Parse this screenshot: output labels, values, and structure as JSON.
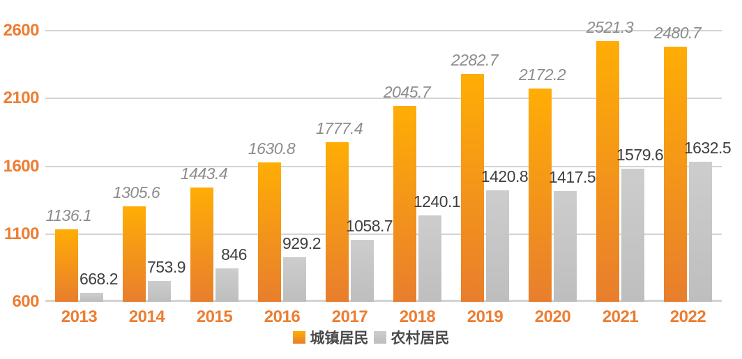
{
  "chart_data": {
    "type": "bar",
    "title": "",
    "xlabel": "",
    "ylabel": "",
    "categories": [
      "2013",
      "2014",
      "2015",
      "2016",
      "2017",
      "2018",
      "2019",
      "2020",
      "2021",
      "2022"
    ],
    "series": [
      {
        "key": "urban",
        "name": "城镇居民",
        "values": [
          1136.1,
          1305.6,
          1443.4,
          1630.8,
          1777.4,
          2045.7,
          2282.7,
          2172.2,
          2521.3,
          2480.7
        ],
        "bar_color_top": "#ffad05",
        "bar_color_bottom": "#e87e2d",
        "value_label_color": "#8c8c8c",
        "value_label_style": "italic"
      },
      {
        "key": "rural",
        "name": "农村居民",
        "values": [
          668.2,
          753.9,
          846,
          929.2,
          1058.7,
          1240.1,
          1420.8,
          1417.5,
          1579.6,
          1632.5
        ],
        "bar_color_top": "#cdcdcd",
        "bar_color_bottom": "#bebebe",
        "value_label_color": "#3f3f3f",
        "value_label_style": "normal"
      }
    ],
    "ylim": [
      600,
      2600
    ],
    "yticks": [
      600,
      1100,
      1600,
      2100,
      2600
    ],
    "grid": true,
    "gridline_color": "#d3d3d3",
    "axis_label_color": "#ed7d31",
    "legend_position": "bottom"
  }
}
